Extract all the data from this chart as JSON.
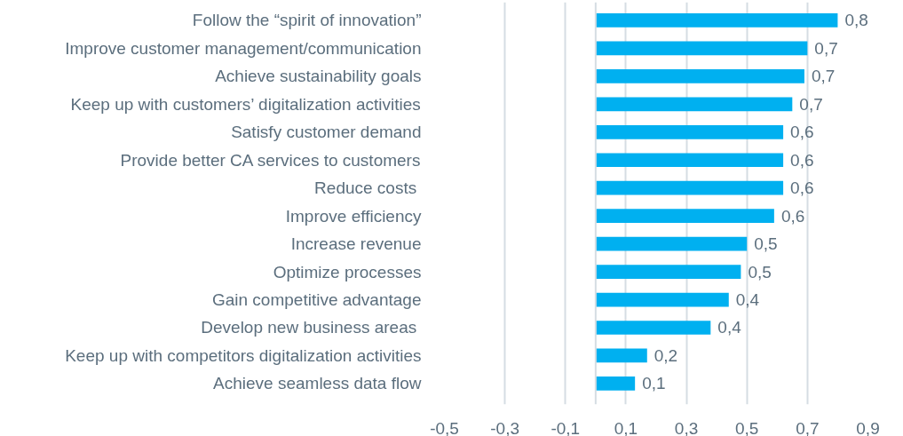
{
  "chart_data": {
    "type": "bar",
    "orientation": "horizontal",
    "categories": [
      "Follow the “spirit of innovation”",
      "Improve customer management/communication",
      "Achieve sustainability goals",
      "Keep up with customers’ digitalization activities",
      "Satisfy customer demand",
      "Provide better CA services to customers",
      "Reduce costs ",
      "Improve efficiency",
      "Increase revenue",
      "Optimize processes",
      "Gain competitive advantage",
      "Develop new business areas ",
      "Keep up with competitors digitalization activities",
      "Achieve seamless data flow"
    ],
    "values": [
      0.8,
      0.7,
      0.69,
      0.65,
      0.62,
      0.62,
      0.62,
      0.59,
      0.5,
      0.48,
      0.44,
      0.38,
      0.17,
      0.13
    ],
    "value_labels": [
      "0,8",
      "0,7",
      "0,7",
      "0,7",
      "0,6",
      "0,6",
      "0,6",
      "0,6",
      "0,5",
      "0,5",
      "0,4",
      "0,4",
      "0,2",
      "0,1"
    ],
    "color": "#00b0f0",
    "xlim": [
      -0.5,
      0.9
    ],
    "xticks": [
      {
        "value": -0.5,
        "label": "-0,5"
      },
      {
        "value": -0.3,
        "label": "-0,3"
      },
      {
        "value": -0.1,
        "label": "-0,1"
      },
      {
        "value": 0.1,
        "label": "0,1"
      },
      {
        "value": 0.3,
        "label": "0,3"
      },
      {
        "value": 0.5,
        "label": "0,5"
      },
      {
        "value": 0.7,
        "label": "0,7"
      },
      {
        "value": 0.9,
        "label": "0,9"
      }
    ],
    "grid": "x"
  }
}
